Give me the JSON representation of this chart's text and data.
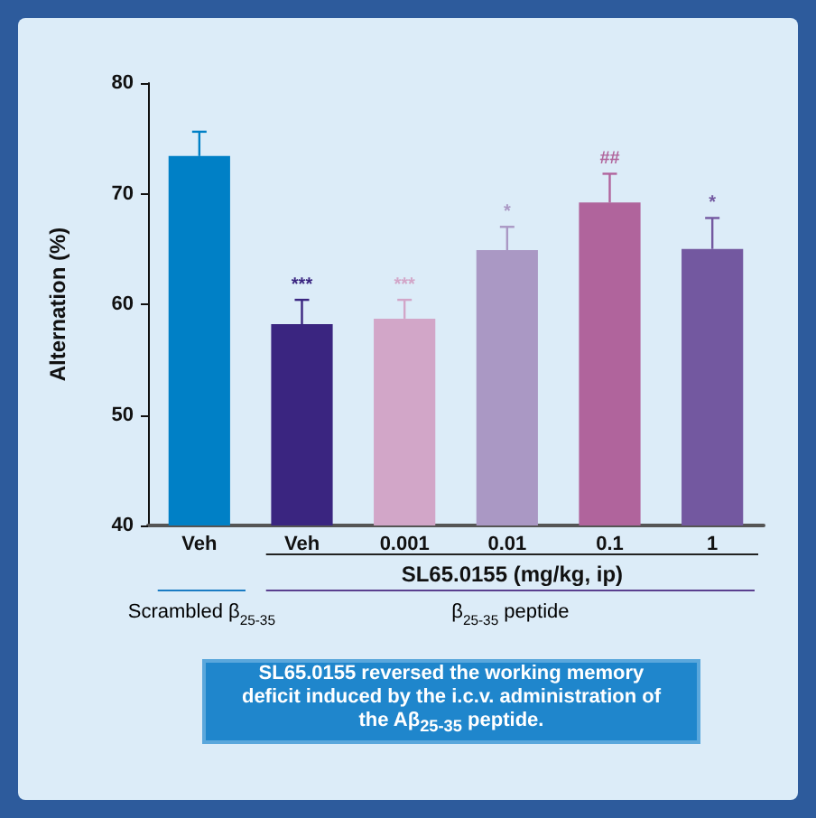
{
  "chart_data": {
    "type": "bar",
    "ylabel": "Alternation (%)",
    "xlabel": "SL65.0155 (mg/kg, ip)",
    "categories": [
      "Veh",
      "Veh",
      "0.001",
      "0.01",
      "0.1",
      "1"
    ],
    "values": [
      73.4,
      58.2,
      58.7,
      64.9,
      69.2,
      65.0
    ],
    "errors": [
      [
        73.4,
        75.6
      ],
      [
        58.2,
        60.4
      ],
      [
        58.7,
        60.4
      ],
      [
        64.9,
        67.0
      ],
      [
        69.2,
        71.8
      ],
      [
        65.0,
        67.8
      ]
    ],
    "colors": [
      "#0080c6",
      "#3a2580",
      "#d2a6c8",
      "#aa98c4",
      "#b0649c",
      "#7358a0"
    ],
    "value_labels": [
      null,
      "***",
      "***",
      "*",
      "##",
      "*"
    ],
    "ylim": [
      40,
      80
    ],
    "yticks": [
      40,
      50,
      60,
      70,
      80
    ],
    "grid": false,
    "annotations": [
      "Scrambled β$_{25-35}$",
      "β$_{25-35}$ peptide",
      "SL65.0155 reversed the working memory deficit induced by the i.c.v. administration of the Aβ$_{25-35}$ peptide."
    ]
  }
}
